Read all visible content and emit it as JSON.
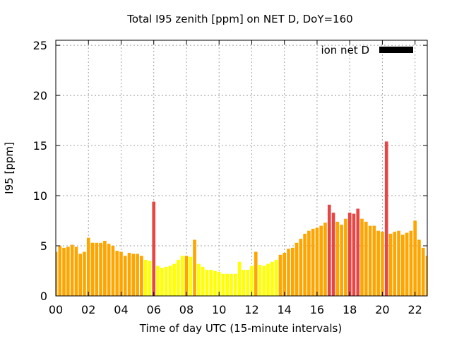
{
  "chart_data": {
    "type": "bar",
    "title": "Total I95 zenith [ppm] on NET D, DoY=160",
    "xlabel": "Time of day UTC (15-minute intervals)",
    "ylabel": "I95 [ppm]",
    "ylim": [
      0,
      25.5
    ],
    "xlim_hours": [
      0,
      22.75
    ],
    "grid": true,
    "legend_position": "top-right",
    "legend_label": "ion net D",
    "legend_color": "#000000",
    "y_ticks": [
      0,
      5,
      10,
      15,
      20,
      25
    ],
    "x_ticks": [
      "00",
      "02",
      "04",
      "06",
      "08",
      "10",
      "12",
      "14",
      "16",
      "18",
      "20",
      "22"
    ],
    "x_tick_hours": [
      0,
      2,
      4,
      6,
      8,
      10,
      12,
      14,
      16,
      18,
      20,
      22
    ],
    "bar_interval_hours": 0.25,
    "colors": {
      "yellow": "#ffff00",
      "orange": "#ffa500",
      "red": "#e84545",
      "grid": "#a0a0a0"
    },
    "values": [
      4.4,
      5.0,
      4.8,
      4.9,
      5.1,
      4.9,
      4.2,
      4.4,
      5.8,
      5.3,
      5.3,
      5.3,
      5.5,
      5.2,
      5.0,
      4.5,
      4.4,
      4.0,
      4.3,
      4.2,
      4.2,
      4.0,
      3.6,
      3.5,
      9.4,
      3.0,
      2.8,
      2.9,
      3.0,
      3.2,
      3.6,
      4.0,
      4.0,
      3.9,
      5.6,
      3.2,
      2.9,
      2.6,
      2.6,
      2.5,
      2.4,
      2.2,
      2.2,
      2.2,
      2.2,
      3.4,
      2.6,
      2.6,
      3.0,
      4.4,
      3.1,
      3.0,
      3.2,
      3.4,
      3.6,
      4.1,
      4.3,
      4.7,
      4.8,
      5.3,
      5.7,
      6.2,
      6.5,
      6.7,
      6.8,
      7.0,
      7.3,
      9.1,
      8.3,
      7.4,
      7.1,
      7.7,
      8.3,
      8.2,
      8.7,
      7.7,
      7.4,
      7.0,
      7.0,
      6.5,
      6.4,
      15.4,
      6.2,
      6.4,
      6.5,
      6.1,
      6.3,
      6.5,
      7.5,
      5.6,
      4.8,
      4.0
    ],
    "categories_color": [
      "orange",
      "orange",
      "orange",
      "orange",
      "orange",
      "orange",
      "orange",
      "orange",
      "orange",
      "orange",
      "orange",
      "orange",
      "orange",
      "orange",
      "orange",
      "orange",
      "orange",
      "orange",
      "orange",
      "orange",
      "orange",
      "orange",
      "yellow",
      "yellow",
      "red",
      "yellow",
      "yellow",
      "yellow",
      "yellow",
      "yellow",
      "yellow",
      "yellow",
      "orange",
      "yellow",
      "orange",
      "yellow",
      "yellow",
      "yellow",
      "yellow",
      "yellow",
      "yellow",
      "yellow",
      "yellow",
      "yellow",
      "yellow",
      "yellow",
      "yellow",
      "yellow",
      "yellow",
      "orange",
      "yellow",
      "yellow",
      "yellow",
      "yellow",
      "yellow",
      "orange",
      "orange",
      "orange",
      "orange",
      "orange",
      "orange",
      "orange",
      "orange",
      "orange",
      "orange",
      "orange",
      "orange",
      "red",
      "red",
      "orange",
      "orange",
      "orange",
      "red",
      "red",
      "red",
      "orange",
      "orange",
      "orange",
      "orange",
      "orange",
      "orange",
      "red",
      "orange",
      "orange",
      "orange",
      "orange",
      "orange",
      "orange",
      "orange",
      "orange",
      "orange",
      "orange"
    ]
  }
}
